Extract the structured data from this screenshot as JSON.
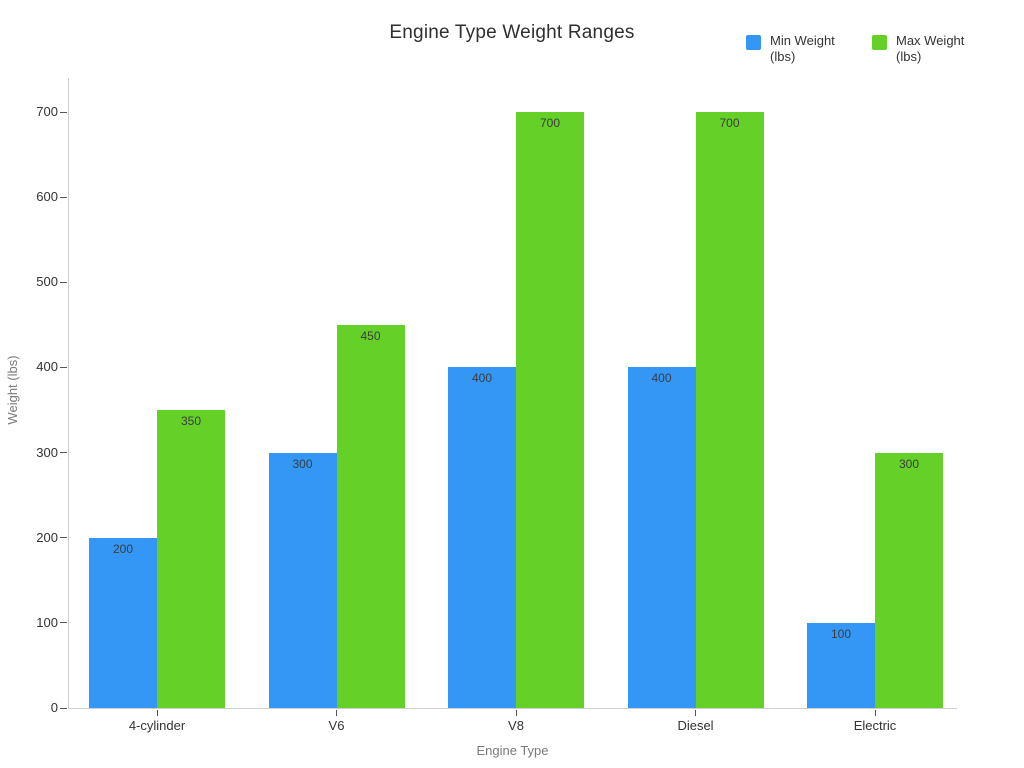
{
  "chart_data": {
    "type": "bar",
    "title": "Engine Type Weight Ranges",
    "categories": [
      "4-cylinder",
      "V6",
      "V8",
      "Diesel",
      "Electric"
    ],
    "series": [
      {
        "name": "Min Weight (lbs)",
        "color": "#3497f5",
        "values": [
          200,
          300,
          400,
          400,
          100
        ]
      },
      {
        "name": "Max Weight (lbs)",
        "color": "#64d028",
        "values": [
          350,
          450,
          700,
          700,
          300
        ]
      }
    ],
    "xlabel": "Engine Type",
    "ylabel": "Weight (lbs)",
    "ylim": [
      0,
      740
    ],
    "yticks": [
      0,
      100,
      200,
      300,
      400,
      500,
      600,
      700
    ],
    "grid": false,
    "legend_position": "top-right",
    "value_labels": true
  }
}
